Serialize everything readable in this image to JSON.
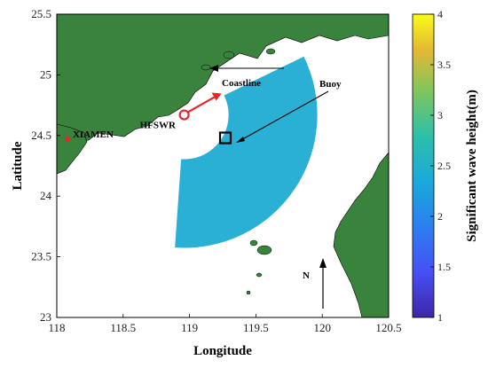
{
  "chart_data": {
    "type": "heatmap",
    "xlabel": "Longitude",
    "ylabel": "Latitude",
    "xlim": [
      118,
      120.5
    ],
    "ylim": [
      23,
      25.5
    ],
    "xticks": [
      "118",
      "118.5",
      "119",
      "119.5",
      "120",
      "120.5"
    ],
    "yticks": [
      "23",
      "23.5",
      "24",
      "24.5",
      "25",
      "25.5"
    ],
    "colorbar": {
      "label": "Significant wave height(m)",
      "range": [
        1,
        4
      ],
      "ticks": [
        "1",
        "1.5",
        "2",
        "2.5",
        "3",
        "3.5",
        "4"
      ]
    },
    "wave_field": {
      "value": 2.2,
      "radar_lon": 118.96,
      "radar_lat": 24.67
    },
    "annotations": {
      "xiamen": "XIAMEN",
      "hfswr": "HFSWR",
      "coastline": "Coastline",
      "buoy": "Buoy",
      "north": "N"
    },
    "points": {
      "xiamen": {
        "lon": 118.08,
        "lat": 24.47
      },
      "hfswr": {
        "lon": 118.96,
        "lat": 24.67
      },
      "buoy": {
        "lon": 119.27,
        "lat": 24.48
      }
    },
    "colors": {
      "land": "#3a833c",
      "sea": "#ffffff",
      "field": "#2ab0d5",
      "marker": "#e8262a"
    }
  }
}
